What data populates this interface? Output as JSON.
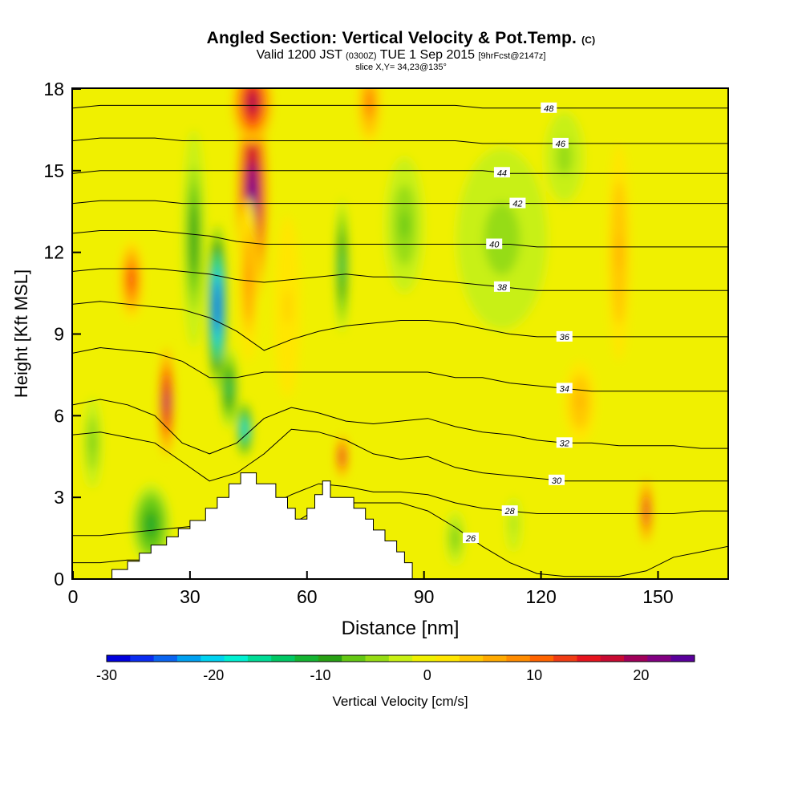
{
  "title": {
    "main": "Angled Section: Vertical Velocity & Pot.Temp.",
    "copyright": "(C)",
    "valid_prefix": "Valid 1200 JST",
    "valid_utc": "(0300Z)",
    "valid_date": "TUE 1 Sep 2015",
    "forecast": "[9hrFcst@2147z]",
    "slice": "slice X,Y= 34,23@135°"
  },
  "chart_data": {
    "type": "heatmap",
    "xlabel": "Distance [nm]",
    "ylabel": "Height [Kft MSL]",
    "xlim": [
      0,
      168
    ],
    "ylim": [
      0,
      18
    ],
    "x_ticks": [
      "0",
      "30",
      "60",
      "90",
      "120",
      "150"
    ],
    "x_tick_values": [
      0,
      30,
      60,
      90,
      120,
      150
    ],
    "y_ticks": [
      "0",
      "3",
      "6",
      "9",
      "12",
      "15",
      "18"
    ],
    "y_tick_values": [
      0,
      3,
      6,
      9,
      12,
      15,
      18
    ],
    "colorbar": {
      "label": "Vertical Velocity [cm/s]",
      "min": -30,
      "max": 25,
      "tick_labels": [
        "-30",
        "-20",
        "-10",
        "0",
        "10",
        "20"
      ],
      "tick_values": [
        -30,
        -20,
        -10,
        0,
        10,
        20
      ],
      "colors": [
        "#0000dc",
        "#0a2cf0",
        "#0a64f0",
        "#00a0f0",
        "#00d2f0",
        "#00f0d2",
        "#00dc96",
        "#00c864",
        "#14b432",
        "#28a014",
        "#64c814",
        "#96dc14",
        "#c8f014",
        "#f0f000",
        "#ffe600",
        "#ffc800",
        "#ffaa00",
        "#ff8c00",
        "#ff6400",
        "#f03c14",
        "#e6141e",
        "#c80a32",
        "#a0005a",
        "#820082",
        "#5a009b"
      ]
    },
    "terrain_profile": {
      "distance": [
        0,
        10,
        10,
        14,
        14,
        17,
        17,
        20,
        20,
        24,
        24,
        27,
        27,
        30,
        30,
        34,
        34,
        37,
        37,
        40,
        40,
        43,
        43,
        47,
        47,
        52,
        52,
        55,
        55,
        57,
        57,
        60,
        60,
        62,
        62,
        64,
        64,
        66,
        66,
        72,
        72,
        75,
        75,
        77,
        77,
        80,
        80,
        83,
        83,
        85,
        85,
        87,
        87,
        168
      ],
      "height": [
        0,
        0,
        0.35,
        0.35,
        0.65,
        0.65,
        0.95,
        0.95,
        1.25,
        1.25,
        1.55,
        1.55,
        1.85,
        1.85,
        2.15,
        2.15,
        2.6,
        2.6,
        3.0,
        3.0,
        3.5,
        3.5,
        3.9,
        3.9,
        3.5,
        3.5,
        3.0,
        3.0,
        2.6,
        2.6,
        2.2,
        2.2,
        2.6,
        2.6,
        3.1,
        3.1,
        3.6,
        3.6,
        3.0,
        3.0,
        2.6,
        2.6,
        2.2,
        2.2,
        1.8,
        1.8,
        1.4,
        1.4,
        1.0,
        1.0,
        0.6,
        0.6,
        0,
        0
      ]
    },
    "contours": [
      {
        "label": "26",
        "y": [
          0.6,
          0.6,
          0.7,
          0.7,
          0.8,
          0.9,
          1.1,
          1.4,
          2.0,
          2.6,
          2.8,
          2.8,
          2.8,
          2.5,
          1.9,
          1.2,
          0.6,
          0.2,
          0.1,
          0.1,
          0.1,
          0.3,
          0.8,
          1.0,
          1.2
        ],
        "label_x": 102
      },
      {
        "label": "28",
        "y": [
          1.6,
          1.6,
          1.7,
          1.8,
          1.9,
          2.0,
          2.2,
          2.6,
          3.1,
          3.5,
          3.4,
          3.2,
          3.2,
          3.1,
          2.8,
          2.6,
          2.5,
          2.4,
          2.4,
          2.4,
          2.4,
          2.4,
          2.4,
          2.5,
          2.5
        ],
        "label_x": 112
      },
      {
        "label": "30",
        "y": [
          5.3,
          5.4,
          5.2,
          5.0,
          4.3,
          3.6,
          3.9,
          4.6,
          5.5,
          5.4,
          5.1,
          4.6,
          4.4,
          4.5,
          4.1,
          3.9,
          3.8,
          3.7,
          3.6,
          3.6,
          3.6,
          3.6,
          3.6,
          3.6,
          3.6
        ],
        "label_x": 124
      },
      {
        "label": "32",
        "y": [
          6.4,
          6.6,
          6.4,
          6.0,
          5.0,
          4.6,
          5.0,
          5.9,
          6.3,
          6.1,
          5.8,
          5.7,
          5.8,
          5.9,
          5.6,
          5.4,
          5.3,
          5.1,
          5.0,
          5.0,
          4.9,
          4.9,
          4.9,
          4.8,
          4.8
        ],
        "label_x": 126
      },
      {
        "label": "34",
        "y": [
          8.3,
          8.5,
          8.4,
          8.3,
          8.0,
          7.4,
          7.4,
          7.6,
          7.6,
          7.6,
          7.6,
          7.6,
          7.6,
          7.6,
          7.4,
          7.4,
          7.2,
          7.1,
          7.0,
          6.9,
          6.9,
          6.9,
          6.9,
          6.9,
          6.9
        ],
        "label_x": 126
      },
      {
        "label": "36",
        "y": [
          10.1,
          10.2,
          10.1,
          10.0,
          9.9,
          9.6,
          9.1,
          8.4,
          8.8,
          9.1,
          9.3,
          9.4,
          9.5,
          9.5,
          9.4,
          9.2,
          9.0,
          8.9,
          8.9,
          8.9,
          8.9,
          8.9,
          8.9,
          8.9,
          8.9
        ],
        "label_x": 126
      },
      {
        "label": "38",
        "y": [
          11.3,
          11.4,
          11.4,
          11.4,
          11.3,
          11.2,
          11.0,
          10.9,
          11.0,
          11.1,
          11.2,
          11.1,
          11.1,
          11.0,
          10.9,
          10.8,
          10.7,
          10.6,
          10.6,
          10.6,
          10.6,
          10.6,
          10.6,
          10.6,
          10.6
        ],
        "label_x": 110
      },
      {
        "label": "40",
        "y": [
          12.7,
          12.8,
          12.8,
          12.8,
          12.7,
          12.6,
          12.4,
          12.3,
          12.3,
          12.3,
          12.3,
          12.3,
          12.3,
          12.3,
          12.3,
          12.3,
          12.3,
          12.2,
          12.2,
          12.2,
          12.2,
          12.2,
          12.2,
          12.2,
          12.2
        ],
        "label_x": 108
      },
      {
        "label": "42",
        "y": [
          13.8,
          13.9,
          13.9,
          13.9,
          13.8,
          13.8,
          13.8,
          13.8,
          13.8,
          13.8,
          13.8,
          13.8,
          13.8,
          13.8,
          13.8,
          13.8,
          13.8,
          13.8,
          13.8,
          13.8,
          13.8,
          13.8,
          13.8,
          13.8,
          13.8
        ],
        "label_x": 114
      },
      {
        "label": "44",
        "y": [
          14.9,
          15.0,
          15.0,
          15.0,
          15.0,
          15.0,
          15.0,
          15.0,
          15.0,
          15.0,
          15.0,
          15.0,
          15.0,
          15.0,
          15.0,
          15.0,
          14.9,
          14.9,
          14.9,
          14.9,
          14.9,
          14.9,
          14.9,
          14.9,
          14.9
        ],
        "label_x": 110
      },
      {
        "label": "46",
        "y": [
          16.1,
          16.2,
          16.2,
          16.2,
          16.1,
          16.1,
          16.1,
          16.1,
          16.1,
          16.1,
          16.1,
          16.1,
          16.1,
          16.1,
          16.1,
          16.0,
          16.0,
          16.0,
          16.0,
          16.0,
          16.0,
          16.0,
          16.0,
          16.0,
          16.0
        ],
        "label_x": 125
      },
      {
        "label": "48",
        "y": [
          17.3,
          17.4,
          17.4,
          17.4,
          17.4,
          17.4,
          17.4,
          17.4,
          17.4,
          17.4,
          17.4,
          17.4,
          17.4,
          17.4,
          17.4,
          17.3,
          17.3,
          17.3,
          17.3,
          17.3,
          17.3,
          17.3,
          17.3,
          17.3,
          17.3
        ],
        "label_x": 122
      }
    ],
    "contour_x": [
      0,
      7,
      14,
      21,
      28,
      35,
      42,
      49,
      56,
      63,
      70,
      77,
      84,
      91,
      98,
      105,
      112,
      119,
      126,
      133,
      140,
      147,
      154,
      161,
      168
    ],
    "velocity_cells": [
      {
        "x": 46,
        "y": 14,
        "sx": 4,
        "sy": 4,
        "v": 26
      },
      {
        "x": 45,
        "y": 11,
        "sx": 2.5,
        "sy": 3,
        "v": 8
      },
      {
        "x": 37,
        "y": 10,
        "sx": 2.5,
        "sy": 3,
        "v": -30
      },
      {
        "x": 44,
        "y": 5.5,
        "sx": 2,
        "sy": 1,
        "v": -22
      },
      {
        "x": 31,
        "y": 12.5,
        "sx": 3,
        "sy": 4,
        "v": -10
      },
      {
        "x": 40,
        "y": 7,
        "sx": 2.5,
        "sy": 1.5,
        "v": -14
      },
      {
        "x": 24,
        "y": 6.5,
        "sx": 2,
        "sy": 2,
        "v": 22
      },
      {
        "x": 15,
        "y": 11,
        "sx": 3,
        "sy": 1.5,
        "v": 12
      },
      {
        "x": 69,
        "y": 11.5,
        "sx": 1.8,
        "sy": 2.5,
        "v": -14
      },
      {
        "x": 69,
        "y": 4.5,
        "sx": 1.5,
        "sy": 0.8,
        "v": 18
      },
      {
        "x": 46,
        "y": 17.5,
        "sx": 5,
        "sy": 1.5,
        "v": 20
      },
      {
        "x": 76,
        "y": 17.5,
        "sx": 3,
        "sy": 1.5,
        "v": 10
      },
      {
        "x": 110,
        "y": 12.5,
        "sx": 14,
        "sy": 4,
        "v": -5
      },
      {
        "x": 126,
        "y": 15.5,
        "sx": 6,
        "sy": 2,
        "v": -5
      },
      {
        "x": 130,
        "y": 6.5,
        "sx": 4,
        "sy": 1.5,
        "v": 6
      },
      {
        "x": 147,
        "y": 2.5,
        "sx": 1.5,
        "sy": 1.2,
        "v": 18
      },
      {
        "x": 20,
        "y": 2,
        "sx": 5,
        "sy": 1.5,
        "v": -12
      },
      {
        "x": 5,
        "y": 5,
        "sx": 3,
        "sy": 2,
        "v": -6
      },
      {
        "x": 98,
        "y": 1.5,
        "sx": 3,
        "sy": 1.2,
        "v": -6
      },
      {
        "x": 113,
        "y": 2,
        "sx": 3,
        "sy": 1.5,
        "v": -4
      },
      {
        "x": 140,
        "y": 12,
        "sx": 3,
        "sy": 4,
        "v": 6
      },
      {
        "x": 85,
        "y": 13,
        "sx": 6,
        "sy": 3,
        "v": -6
      },
      {
        "x": 55,
        "y": 10,
        "sx": 4,
        "sy": 4,
        "v": 3
      }
    ]
  }
}
